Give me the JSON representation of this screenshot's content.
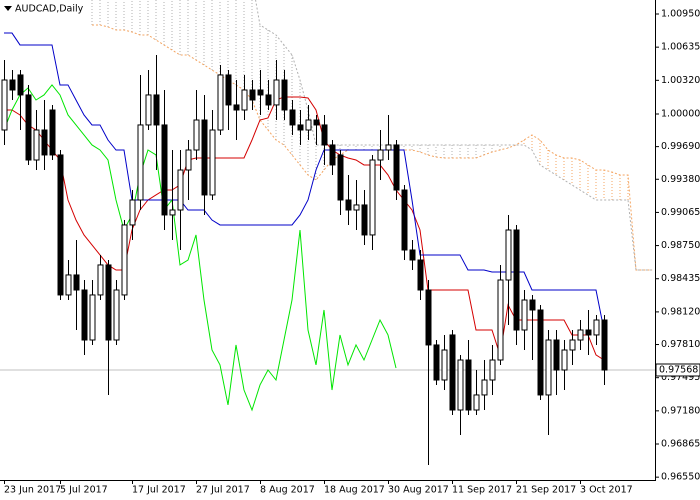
{
  "chart_data": {
    "type": "candlestick",
    "title": "AUDCAD,Daily",
    "categories": [
      "23 Jun 2017",
      null,
      null,
      null,
      null,
      null,
      null,
      "5 Jul 2017",
      null,
      null,
      null,
      null,
      null,
      null,
      null,
      null,
      "17 Jul 2017",
      null,
      null,
      null,
      null,
      null,
      null,
      null,
      "27 Jul 2017",
      null,
      null,
      null,
      null,
      null,
      null,
      null,
      "8 Aug 2017",
      null,
      null,
      null,
      null,
      null,
      null,
      null,
      "18 Aug 2017",
      null,
      null,
      null,
      null,
      null,
      null,
      null,
      "30 Aug 2017",
      null,
      null,
      null,
      null,
      null,
      null,
      null,
      "11 Sep 2017",
      null,
      null,
      null,
      null,
      null,
      null,
      null,
      "21 Sep 2017",
      null,
      null,
      null,
      null,
      null,
      null,
      null,
      "3 Oct 2017",
      null,
      null,
      null,
      null,
      null,
      null,
      null,
      null,
      null
    ],
    "open": [
      0.99848,
      1.00323,
      1.00371,
      1.00181,
      0.99563,
      0.99848,
      1.00038,
      0.99611,
      0.98281,
      0.98471,
      0.98328,
      0.97853,
      0.98281,
      0.98566,
      0.97853,
      0.98281,
      0.98946,
      0.99183,
      0.99896,
      1.00181,
      0.99896,
      0.99041,
      0.99088,
      0.99468,
      0.99658,
      0.99943,
      0.99231,
      0.99848,
      1.00371,
      1.00086,
      1.00038,
      1.00228,
      1.00228,
      1.00181,
      1.00086,
      1.00323,
      1.00038,
      0.99896,
      0.99848,
      0.99943,
      0.99896,
      0.99706,
      0.99611,
      0.99183,
      0.99088,
      0.99136,
      0.98851,
      0.99563,
      0.99658,
      0.99706,
      0.99278,
      0.98708,
      0.98613,
      0.98328,
      0.97806,
      0.97473,
      0.97901,
      0.97188,
      0.97663,
      0.97188,
      0.97331,
      0.97473,
      0.97663,
      0.98423,
      0.98898,
      0.97948,
      0.98233,
      0.98138,
      0.97331,
      0.97853,
      0.97568,
      0.97758,
      0.97853,
      0.97948,
      0.97901,
      0.98043,
      null,
      null,
      null,
      null,
      null,
      null
    ],
    "high": [
      1.00513,
      1.00418,
      1.00418,
      1.00276,
      1.00038,
      1.00133,
      1.00086,
      0.99658,
      0.98613,
      0.98803,
      0.98423,
      0.98423,
      0.98661,
      0.98613,
      0.98423,
      0.98993,
      0.99278,
      1.00371,
      1.00418,
      1.0056,
      1.00228,
      0.99658,
      0.99658,
      0.99753,
      1.00228,
      1.00181,
      1.00038,
      1.00466,
      1.00418,
      1.00323,
      1.00371,
      1.00323,
      1.00418,
      1.00323,
      1.00513,
      1.00418,
      1.00133,
      1.00038,
      1.00086,
      0.99991,
      0.99991,
      0.99753,
      0.99658,
      0.99421,
      0.99373,
      0.99278,
      0.99611,
      0.99848,
      0.99991,
      0.99753,
      0.99326,
      0.98803,
      0.98708,
      0.98423,
      0.97853,
      0.97901,
      0.97948,
      0.97711,
      0.97853,
      0.97568,
      0.97663,
      0.97806,
      0.98566,
      0.99041,
      0.98946,
      0.98328,
      0.98281,
      0.98186,
      0.97948,
      0.97948,
      0.97853,
      0.97948,
      0.98043,
      0.98138,
      0.98091,
      0.98091,
      null,
      null,
      null,
      null,
      null,
      null
    ],
    "low": [
      0.99706,
      1.00133,
      0.99848,
      0.99516,
      0.99468,
      0.99468,
      0.99563,
      0.98233,
      0.98233,
      0.97948,
      0.97711,
      0.97806,
      0.98233,
      0.97331,
      0.97806,
      0.98233,
      0.98803,
      0.99088,
      0.99848,
      0.99468,
      0.98898,
      0.98803,
      0.98708,
      0.99183,
      0.99563,
      0.99041,
      0.99183,
      0.99801,
      0.99848,
      0.99753,
      0.99943,
      1.00038,
      0.99991,
      1.00038,
      0.99943,
      0.99943,
      0.99801,
      0.99706,
      0.99753,
      0.99706,
      0.99516,
      0.99421,
      0.99041,
      0.98946,
      0.98898,
      0.98756,
      0.98708,
      0.99373,
      0.99563,
      0.99183,
      0.98613,
      0.98518,
      0.98233,
      0.96666,
      0.97426,
      0.97378,
      0.97141,
      0.96951,
      0.97141,
      0.97141,
      0.97188,
      0.97331,
      0.97616,
      0.97996,
      0.97806,
      0.97758,
      0.97663,
      0.97283,
      0.96951,
      0.97331,
      0.97378,
      0.97616,
      0.97758,
      0.97711,
      0.97806,
      0.97426,
      null,
      null,
      null,
      null,
      null,
      null
    ],
    "close": [
      1.00323,
      1.00228,
      1.00181,
      0.99563,
      0.99848,
      0.99611,
      0.99611,
      0.98281,
      0.98471,
      0.98328,
      0.97853,
      0.98281,
      0.98566,
      0.97853,
      0.98328,
      0.98946,
      0.99183,
      0.99896,
      1.00181,
      0.99896,
      0.99041,
      0.99088,
      0.99468,
      0.99658,
      0.99943,
      0.99231,
      0.99848,
      1.00371,
      1.00086,
      1.00038,
      1.00228,
      1.00133,
      1.00181,
      1.00086,
      1.00323,
      1.00038,
      0.99896,
      0.99848,
      0.99943,
      0.99896,
      0.99706,
      0.99516,
      0.99183,
      0.99088,
      0.99136,
      0.98851,
      0.99563,
      0.99658,
      0.99706,
      0.99278,
      0.98708,
      0.98613,
      0.98328,
      0.97806,
      0.97473,
      0.97758,
      0.97188,
      0.97663,
      0.97188,
      0.97331,
      0.97473,
      0.97663,
      0.98423,
      0.98898,
      0.97948,
      0.98233,
      0.98138,
      0.97331,
      0.97853,
      0.97568,
      0.97758,
      0.97853,
      0.97948,
      0.97901,
      0.98043,
      0.97568,
      null,
      null,
      null,
      null,
      null,
      null
    ],
    "up_color": "#ffffff",
    "down_color": "#000000",
    "lines": [
      {
        "color": "#d40000",
        "values": [
          1.00038,
          1.00038,
          0.99991,
          0.99896,
          0.99848,
          0.99753,
          0.99658,
          0.99563,
          0.99183,
          0.98993,
          0.98851,
          0.98756,
          0.98661,
          0.98566,
          0.98518,
          0.98518,
          0.98898,
          0.99088,
          0.99183,
          0.99231,
          0.99278,
          0.99278,
          0.99326,
          0.99563,
          0.99582,
          0.99582,
          0.99582,
          0.99582,
          0.99582,
          0.99582,
          0.99582,
          0.99753,
          0.99943,
          0.99962,
          1.00133,
          1.00162,
          1.00162,
          1.00162,
          1.00152,
          1.00038,
          0.99753,
          0.99658,
          0.99611,
          0.99582,
          0.99563,
          0.99516,
          0.99516,
          0.99516,
          0.99421,
          0.99278,
          0.99183,
          0.99088,
          0.98898,
          0.98328,
          0.98328,
          0.98328,
          0.98328,
          0.98328,
          0.98328,
          0.97948,
          0.97948,
          0.97948,
          0.97711,
          0.98186,
          0.98043,
          0.98043,
          0.98043,
          0.98043,
          0.98043,
          0.98043,
          0.98043,
          0.97901,
          0.97901,
          0.97901,
          0.97711,
          0.97663,
          null,
          null,
          null,
          null,
          null,
          null
        ]
      },
      {
        "color": "#0000c8",
        "values": [
          1.00769,
          1.00769,
          1.00656,
          1.00656,
          1.00656,
          1.00656,
          1.00656,
          1.00276,
          1.00276,
          1.00133,
          0.99991,
          0.99896,
          0.99896,
          0.99753,
          0.99658,
          0.99658,
          0.99183,
          0.99183,
          0.99183,
          0.99183,
          0.99183,
          0.99183,
          0.99183,
          0.99088,
          0.99088,
          0.99088,
          0.98993,
          0.98946,
          0.98946,
          0.98946,
          0.98946,
          0.98946,
          0.98946,
          0.98946,
          0.98946,
          0.98946,
          0.98946,
          0.99041,
          0.99183,
          0.99468,
          0.99658,
          0.99658,
          0.99658,
          0.99658,
          0.99658,
          0.99658,
          0.99658,
          0.99658,
          0.99658,
          0.99658,
          0.99658,
          0.99183,
          0.98661,
          0.98661,
          0.98661,
          0.98661,
          0.98661,
          0.98661,
          0.98518,
          0.98518,
          0.98518,
          0.98499,
          0.98499,
          0.98499,
          0.98499,
          0.98499,
          0.98328,
          0.98328,
          0.98328,
          0.98328,
          0.98328,
          0.98328,
          0.98328,
          0.98328,
          0.98328,
          0.97948,
          null,
          null,
          null,
          null,
          null,
          null
        ]
      },
      {
        "color": "#00e600",
        "values": [
          0.99848,
          1.00038,
          1.00181,
          1.00247,
          1.00133,
          1.00181,
          1.00276,
          1.00181,
          0.99991,
          0.99896,
          0.99801,
          0.99706,
          0.99658,
          0.99563,
          0.99183,
          0.98898,
          0.99041,
          0.99421,
          0.99658,
          0.99611,
          0.99088,
          0.99183,
          0.98566,
          0.98613,
          0.98851,
          0.98233,
          0.97758,
          0.97616,
          0.97236,
          0.97806,
          0.97378,
          0.97188,
          0.97426,
          0.97568,
          0.97473,
          0.97853,
          0.98233,
          0.98898,
          0.97948,
          0.97616,
          0.98138,
          0.97378,
          0.97901,
          0.97616,
          0.97806,
          0.97663,
          0.97853,
          0.98043,
          0.97901,
          0.97587,
          null,
          null,
          null,
          null,
          null,
          null,
          null,
          null,
          null,
          null,
          null,
          null,
          null,
          null,
          null,
          null,
          null,
          null,
          null,
          null,
          null,
          null,
          null,
          null,
          null,
          null,
          null,
          null,
          null,
          null,
          null,
          null
        ]
      }
    ],
    "cloud": [
      {
        "color": "#f4a460",
        "values": [
          null,
          null,
          null,
          null,
          null,
          null,
          null,
          null,
          null,
          null,
          null,
          1.00846,
          1.00846,
          1.00827,
          1.00798,
          1.00798,
          1.00779,
          1.00751,
          1.00751,
          1.00703,
          1.00656,
          1.00608,
          1.00561,
          1.00561,
          1.00513,
          1.00466,
          1.00418,
          1.00371,
          1.00323,
          1.00276,
          1.00228,
          1.00133,
          0.99943,
          0.99848,
          0.99753,
          0.99706,
          0.99611,
          0.99516,
          0.99421,
          0.99373,
          0.99468,
          0.99563,
          0.99611,
          0.99658,
          0.99658,
          0.99658,
          0.99658,
          0.99658,
          0.99658,
          0.99658,
          0.99658,
          0.99658,
          0.99639,
          0.99611,
          0.99591,
          0.99582,
          0.99582,
          0.99582,
          0.99582,
          0.99582,
          0.99611,
          0.99639,
          0.99658,
          0.99677,
          0.99706,
          0.99753,
          0.99801,
          0.99753,
          0.99658,
          0.99611,
          0.99582,
          0.99582,
          0.99563,
          0.99516,
          0.99468,
          0.99468,
          0.99449,
          0.99421,
          0.99421,
          0.98518,
          0.98518,
          0.98518
        ]
      },
      {
        "color": "#b0b0b0",
        "values": [
          null,
          null,
          null,
          null,
          null,
          null,
          null,
          null,
          null,
          null,
          null,
          1.01273,
          1.01273,
          1.01273,
          1.01273,
          1.01273,
          1.01273,
          1.01273,
          1.01273,
          1.01273,
          1.01273,
          1.01273,
          1.01273,
          1.01273,
          1.01273,
          1.01273,
          1.01273,
          1.01273,
          1.01273,
          1.01273,
          1.01273,
          1.01273,
          1.00846,
          1.00798,
          1.00751,
          1.00656,
          1.00561,
          1.00323,
          1.00038,
          0.99706,
          0.99706,
          0.99706,
          0.99706,
          0.99706,
          0.99706,
          0.99706,
          0.99706,
          0.99706,
          0.99706,
          0.99706,
          0.99706,
          0.99706,
          0.99706,
          0.99706,
          0.99706,
          0.99706,
          0.99706,
          0.99706,
          0.99706,
          0.99706,
          0.99706,
          0.99706,
          0.99706,
          0.99706,
          0.99706,
          0.99706,
          0.99658,
          0.99516,
          0.99468,
          0.99421,
          0.99373,
          0.99326,
          0.99278,
          0.99231,
          0.99183,
          0.99183,
          0.99183,
          0.99183,
          0.99183,
          0.98518,
          0.98518,
          0.98518
        ]
      }
    ],
    "last_price": 0.97568,
    "ylim": [
      0.96523,
      1.01083
    ],
    "yticks": [
      {
        "value": 1.0095,
        "label": "1.00950"
      },
      1.00635,
      {
        "value": 1.0032,
        "label": "1.00320"
      },
      {
        "value": 1,
        "label": "1.00000"
      },
      {
        "value": 0.9969,
        "label": "0.99690"
      },
      {
        "value": 0.9938,
        "label": "0.99380"
      },
      0.99065,
      {
        "value": 0.9875,
        "label": "0.98750"
      },
      0.98435,
      {
        "value": 0.9812,
        "label": "0.98120"
      },
      {
        "value": 0.9781,
        "label": "0.97810"
      },
      0.97495,
      {
        "value": 0.9718,
        "label": "0.97180"
      },
      0.96865,
      {
        "value": 0.9655,
        "label": "0.96550"
      }
    ]
  }
}
